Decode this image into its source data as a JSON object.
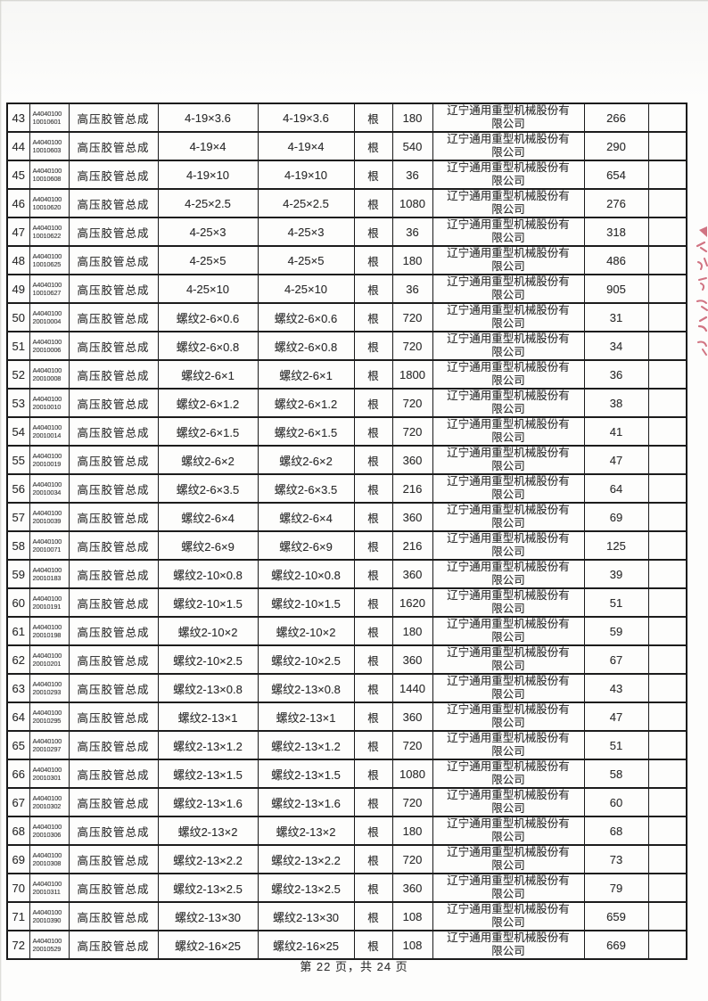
{
  "page": {
    "footer": "第 22 页，共 24 页"
  },
  "seal": {
    "name": "red-seal-fragment",
    "color": "#c2455a"
  },
  "table": {
    "rows": [
      {
        "seq": "43",
        "code_l1": "A4040100",
        "code_l2": "10010601",
        "name": "高压胶管总成",
        "spec": "4-19×3.6",
        "unit": "根",
        "qty": "180",
        "supplier": "辽宁通用重型机械股份有限公司",
        "price": "266",
        "blank": ""
      },
      {
        "seq": "44",
        "code_l1": "A4040100",
        "code_l2": "10010603",
        "name": "高压胶管总成",
        "spec": "4-19×4",
        "unit": "根",
        "qty": "540",
        "supplier": "辽宁通用重型机械股份有限公司",
        "price": "290",
        "blank": ""
      },
      {
        "seq": "45",
        "code_l1": "A4040100",
        "code_l2": "10010608",
        "name": "高压胶管总成",
        "spec": "4-19×10",
        "unit": "根",
        "qty": "36",
        "supplier": "辽宁通用重型机械股份有限公司",
        "price": "654",
        "blank": ""
      },
      {
        "seq": "46",
        "code_l1": "A4040100",
        "code_l2": "10010620",
        "name": "高压胶管总成",
        "spec": "4-25×2.5",
        "unit": "根",
        "qty": "1080",
        "supplier": "辽宁通用重型机械股份有限公司",
        "price": "276",
        "blank": ""
      },
      {
        "seq": "47",
        "code_l1": "A4040100",
        "code_l2": "10010622",
        "name": "高压胶管总成",
        "spec": "4-25×3",
        "unit": "根",
        "qty": "36",
        "supplier": "辽宁通用重型机械股份有限公司",
        "price": "318",
        "blank": ""
      },
      {
        "seq": "48",
        "code_l1": "A4040100",
        "code_l2": "10010625",
        "name": "高压胶管总成",
        "spec": "4-25×5",
        "unit": "根",
        "qty": "180",
        "supplier": "辽宁通用重型机械股份有限公司",
        "price": "486",
        "blank": ""
      },
      {
        "seq": "49",
        "code_l1": "A4040100",
        "code_l2": "10010627",
        "name": "高压胶管总成",
        "spec": "4-25×10",
        "unit": "根",
        "qty": "36",
        "supplier": "辽宁通用重型机械股份有限公司",
        "price": "905",
        "blank": ""
      },
      {
        "seq": "50",
        "code_l1": "A4040100",
        "code_l2": "20010004",
        "name": "高压胶管总成",
        "spec": "螺纹2-6×0.6",
        "unit": "根",
        "qty": "720",
        "supplier": "辽宁通用重型机械股份有限公司",
        "price": "31",
        "blank": ""
      },
      {
        "seq": "51",
        "code_l1": "A4040100",
        "code_l2": "20010006",
        "name": "高压胶管总成",
        "spec": "螺纹2-6×0.8",
        "unit": "根",
        "qty": "720",
        "supplier": "辽宁通用重型机械股份有限公司",
        "price": "34",
        "blank": ""
      },
      {
        "seq": "52",
        "code_l1": "A4040100",
        "code_l2": "20010008",
        "name": "高压胶管总成",
        "spec": "螺纹2-6×1",
        "unit": "根",
        "qty": "1800",
        "supplier": "辽宁通用重型机械股份有限公司",
        "price": "36",
        "blank": ""
      },
      {
        "seq": "53",
        "code_l1": "A4040100",
        "code_l2": "20010010",
        "name": "高压胶管总成",
        "spec": "螺纹2-6×1.2",
        "unit": "根",
        "qty": "720",
        "supplier": "辽宁通用重型机械股份有限公司",
        "price": "38",
        "blank": ""
      },
      {
        "seq": "54",
        "code_l1": "A4040100",
        "code_l2": "20010014",
        "name": "高压胶管总成",
        "spec": "螺纹2-6×1.5",
        "unit": "根",
        "qty": "720",
        "supplier": "辽宁通用重型机械股份有限公司",
        "price": "41",
        "blank": ""
      },
      {
        "seq": "55",
        "code_l1": "A4040100",
        "code_l2": "20010019",
        "name": "高压胶管总成",
        "spec": "螺纹2-6×2",
        "unit": "根",
        "qty": "360",
        "supplier": "辽宁通用重型机械股份有限公司",
        "price": "47",
        "blank": ""
      },
      {
        "seq": "56",
        "code_l1": "A4040100",
        "code_l2": "20010034",
        "name": "高压胶管总成",
        "spec": "螺纹2-6×3.5",
        "unit": "根",
        "qty": "216",
        "supplier": "辽宁通用重型机械股份有限公司",
        "price": "64",
        "blank": ""
      },
      {
        "seq": "57",
        "code_l1": "A4040100",
        "code_l2": "20010039",
        "name": "高压胶管总成",
        "spec": "螺纹2-6×4",
        "unit": "根",
        "qty": "360",
        "supplier": "辽宁通用重型机械股份有限公司",
        "price": "69",
        "blank": ""
      },
      {
        "seq": "58",
        "code_l1": "A4040100",
        "code_l2": "20010071",
        "name": "高压胶管总成",
        "spec": "螺纹2-6×9",
        "unit": "根",
        "qty": "216",
        "supplier": "辽宁通用重型机械股份有限公司",
        "price": "125",
        "blank": ""
      },
      {
        "seq": "59",
        "code_l1": "A4040100",
        "code_l2": "20010183",
        "name": "高压胶管总成",
        "spec": "螺纹2-10×0.8",
        "unit": "根",
        "qty": "360",
        "supplier": "辽宁通用重型机械股份有限公司",
        "price": "39",
        "blank": ""
      },
      {
        "seq": "60",
        "code_l1": "A4040100",
        "code_l2": "20010191",
        "name": "高压胶管总成",
        "spec": "螺纹2-10×1.5",
        "unit": "根",
        "qty": "1620",
        "supplier": "辽宁通用重型机械股份有限公司",
        "price": "51",
        "blank": ""
      },
      {
        "seq": "61",
        "code_l1": "A4040100",
        "code_l2": "20010198",
        "name": "高压胶管总成",
        "spec": "螺纹2-10×2",
        "unit": "根",
        "qty": "180",
        "supplier": "辽宁通用重型机械股份有限公司",
        "price": "59",
        "blank": ""
      },
      {
        "seq": "62",
        "code_l1": "A4040100",
        "code_l2": "20010201",
        "name": "高压胶管总成",
        "spec": "螺纹2-10×2.5",
        "unit": "根",
        "qty": "360",
        "supplier": "辽宁通用重型机械股份有限公司",
        "price": "67",
        "blank": ""
      },
      {
        "seq": "63",
        "code_l1": "A4040100",
        "code_l2": "20010293",
        "name": "高压胶管总成",
        "spec": "螺纹2-13×0.8",
        "unit": "根",
        "qty": "1440",
        "supplier": "辽宁通用重型机械股份有限公司",
        "price": "43",
        "blank": ""
      },
      {
        "seq": "64",
        "code_l1": "A4040100",
        "code_l2": "20010295",
        "name": "高压胶管总成",
        "spec": "螺纹2-13×1",
        "unit": "根",
        "qty": "360",
        "supplier": "辽宁通用重型机械股份有限公司",
        "price": "47",
        "blank": ""
      },
      {
        "seq": "65",
        "code_l1": "A4040100",
        "code_l2": "20010297",
        "name": "高压胶管总成",
        "spec": "螺纹2-13×1.2",
        "unit": "根",
        "qty": "720",
        "supplier": "辽宁通用重型机械股份有限公司",
        "price": "51",
        "blank": ""
      },
      {
        "seq": "66",
        "code_l1": "A4040100",
        "code_l2": "20010301",
        "name": "高压胶管总成",
        "spec": "螺纹2-13×1.5",
        "unit": "根",
        "qty": "1080",
        "supplier": "辽宁通用重型机械股份有限公司",
        "price": "58",
        "blank": ""
      },
      {
        "seq": "67",
        "code_l1": "A4040100",
        "code_l2": "20010302",
        "name": "高压胶管总成",
        "spec": "螺纹2-13×1.6",
        "unit": "根",
        "qty": "720",
        "supplier": "辽宁通用重型机械股份有限公司",
        "price": "60",
        "blank": ""
      },
      {
        "seq": "68",
        "code_l1": "A4040100",
        "code_l2": "20010306",
        "name": "高压胶管总成",
        "spec": "螺纹2-13×2",
        "unit": "根",
        "qty": "180",
        "supplier": "辽宁通用重型机械股份有限公司",
        "price": "68",
        "blank": ""
      },
      {
        "seq": "69",
        "code_l1": "A4040100",
        "code_l2": "20010308",
        "name": "高压胶管总成",
        "spec": "螺纹2-13×2.2",
        "unit": "根",
        "qty": "720",
        "supplier": "辽宁通用重型机械股份有限公司",
        "price": "73",
        "blank": ""
      },
      {
        "seq": "70",
        "code_l1": "A4040100",
        "code_l2": "20010311",
        "name": "高压胶管总成",
        "spec": "螺纹2-13×2.5",
        "unit": "根",
        "qty": "360",
        "supplier": "辽宁通用重型机械股份有限公司",
        "price": "79",
        "blank": ""
      },
      {
        "seq": "71",
        "code_l1": "A4040100",
        "code_l2": "20010390",
        "name": "高压胶管总成",
        "spec": "螺纹2-13×30",
        "unit": "根",
        "qty": "108",
        "supplier": "辽宁通用重型机械股份有限公司",
        "price": "659",
        "blank": ""
      },
      {
        "seq": "72",
        "code_l1": "A4040100",
        "code_l2": "20010529",
        "name": "高压胶管总成",
        "spec": "螺纹2-16×25",
        "unit": "根",
        "qty": "108",
        "supplier": "辽宁通用重型机械股份有限公司",
        "price": "669",
        "blank": ""
      }
    ]
  }
}
